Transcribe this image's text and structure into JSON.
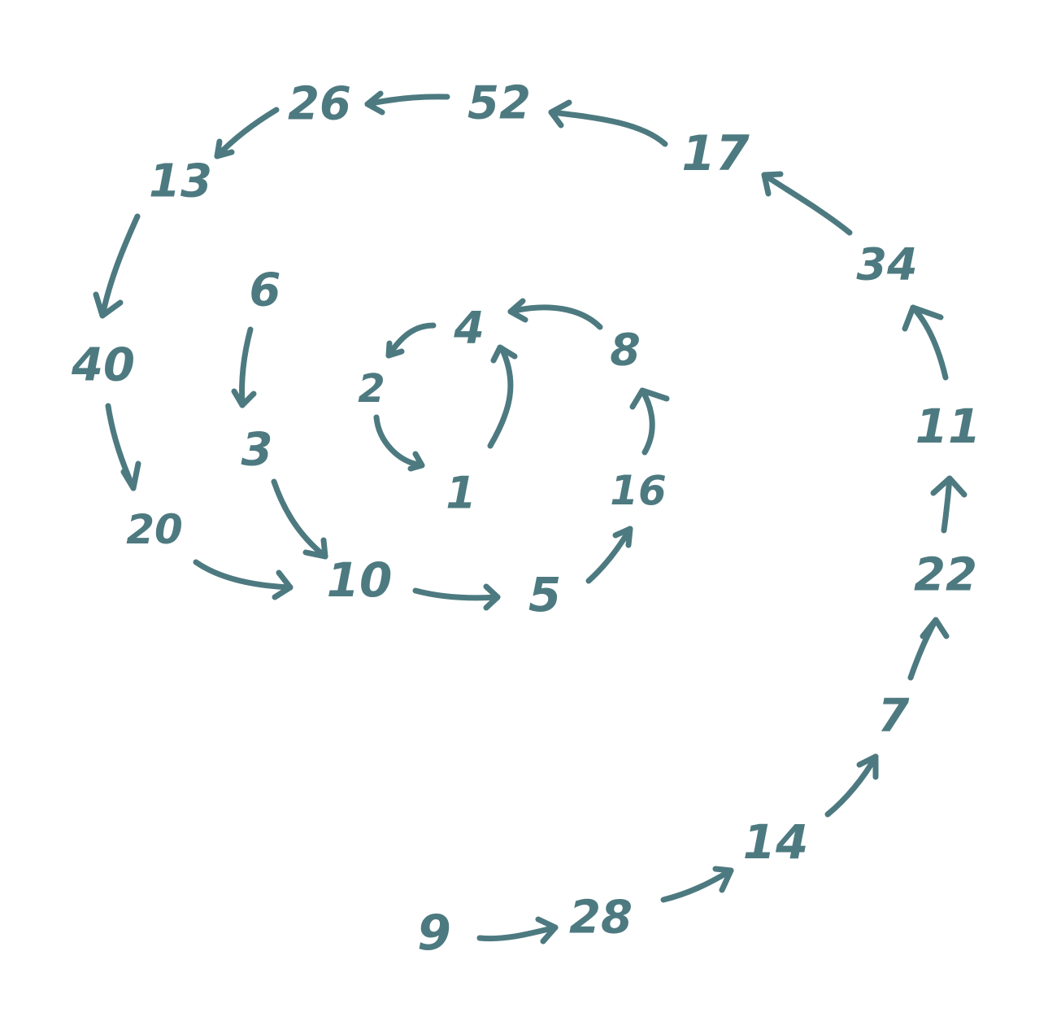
{
  "diagram": {
    "color": "#4d7a80",
    "nodes": [
      {
        "id": "n1",
        "label": "1"
      },
      {
        "id": "n2",
        "label": "2"
      },
      {
        "id": "n4",
        "label": "4"
      },
      {
        "id": "n8",
        "label": "8"
      },
      {
        "id": "n16",
        "label": "16"
      },
      {
        "id": "n5",
        "label": "5"
      },
      {
        "id": "n10",
        "label": "10"
      },
      {
        "id": "n3",
        "label": "3"
      },
      {
        "id": "n6",
        "label": "6"
      },
      {
        "id": "n20",
        "label": "20"
      },
      {
        "id": "n40",
        "label": "40"
      },
      {
        "id": "n13",
        "label": "13"
      },
      {
        "id": "n26",
        "label": "26"
      },
      {
        "id": "n52",
        "label": "52"
      },
      {
        "id": "n17",
        "label": "17"
      },
      {
        "id": "n34",
        "label": "34"
      },
      {
        "id": "n11",
        "label": "11"
      },
      {
        "id": "n22",
        "label": "22"
      },
      {
        "id": "n7",
        "label": "7"
      },
      {
        "id": "n14",
        "label": "14"
      },
      {
        "id": "n28",
        "label": "28"
      },
      {
        "id": "n9",
        "label": "9"
      }
    ],
    "edges": [
      {
        "from": "1",
        "to": "4"
      },
      {
        "from": "4",
        "to": "2"
      },
      {
        "from": "2",
        "to": "1"
      },
      {
        "from": "8",
        "to": "4"
      },
      {
        "from": "16",
        "to": "8"
      },
      {
        "from": "5",
        "to": "16"
      },
      {
        "from": "10",
        "to": "5"
      },
      {
        "from": "3",
        "to": "10"
      },
      {
        "from": "6",
        "to": "3"
      },
      {
        "from": "20",
        "to": "10"
      },
      {
        "from": "40",
        "to": "20"
      },
      {
        "from": "13",
        "to": "40"
      },
      {
        "from": "26",
        "to": "13"
      },
      {
        "from": "52",
        "to": "26"
      },
      {
        "from": "17",
        "to": "52"
      },
      {
        "from": "34",
        "to": "17"
      },
      {
        "from": "11",
        "to": "34"
      },
      {
        "from": "22",
        "to": "11"
      },
      {
        "from": "7",
        "to": "22"
      },
      {
        "from": "14",
        "to": "7"
      },
      {
        "from": "28",
        "to": "14"
      },
      {
        "from": "9",
        "to": "28"
      }
    ]
  }
}
